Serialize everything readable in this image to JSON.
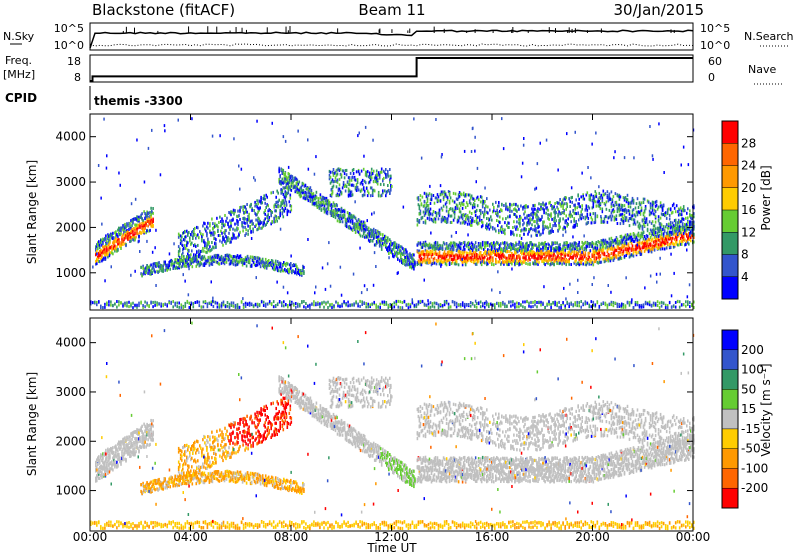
{
  "header": {
    "station": "Blackstone (fitACF)",
    "beam": "Beam 11",
    "date": "30/Jan/2015"
  },
  "sky_panel": {
    "left_label": "N.Sky",
    "right_label": "N.Search",
    "left_ticks": [
      "10^5",
      "10^0"
    ],
    "right_ticks": [
      "10^5",
      "10^0"
    ]
  },
  "freq_panel": {
    "left_label_1": "Freq.",
    "left_label_2": "[MHz]",
    "left_ticks": [
      "18",
      "8"
    ],
    "right_label": "Nave",
    "right_ticks": [
      "60",
      "0"
    ]
  },
  "cpid_panel": {
    "label": "CPID",
    "value": "themis -3300"
  },
  "power_panel": {
    "ylabel": "Slant Range [km]",
    "yticks": [
      "4000",
      "3000",
      "2000",
      "1000"
    ],
    "colorbar_label": "Power [dB]",
    "colorbar_ticks": [
      "28",
      "24",
      "20",
      "16",
      "12",
      "8",
      "4"
    ],
    "colorbar_colors": [
      "#ff0000",
      "#ff6600",
      "#ff9900",
      "#ffcc00",
      "#66cc33",
      "#339966",
      "#3355cc",
      "#0000ff"
    ]
  },
  "velocity_panel": {
    "ylabel": "Slant Range [km]",
    "yticks": [
      "4000",
      "3000",
      "2000",
      "1000"
    ],
    "colorbar_label": "Velocity [m s⁻¹]",
    "colorbar_ticks": [
      "200",
      "100",
      "50",
      "15",
      "-15",
      "-50",
      "-100",
      "-200"
    ],
    "colorbar_colors": [
      "#0000ff",
      "#3355cc",
      "#339966",
      "#66cc33",
      "#c0c0c0",
      "#ffcc00",
      "#ff9900",
      "#ff6600",
      "#ff0000"
    ]
  },
  "xaxis": {
    "label": "Time UT",
    "ticks": [
      "00:00",
      "04:00",
      "08:00",
      "12:00",
      "16:00",
      "20:00",
      "00:00"
    ]
  },
  "chart_data": [
    {
      "type": "line",
      "title": "N.Sky / N.Search",
      "x_range_hours": [
        0,
        24
      ],
      "y_scale": "log",
      "ylim": [
        1,
        100000
      ]
    },
    {
      "type": "line",
      "title": "Freq. / Nave",
      "x_range_hours": [
        0,
        24
      ],
      "series": [
        {
          "name": "Freq. [MHz]",
          "x": [
            0,
            0.1,
            0.1,
            13,
            13,
            24
          ],
          "values": [
            8,
            8,
            10,
            10,
            18,
            18
          ]
        }
      ],
      "ylim": [
        8,
        18
      ]
    },
    {
      "type": "heatmap",
      "title": "Power [dB]",
      "x_range_hours": [
        0,
        24
      ],
      "ylim_km": [
        180,
        4500
      ]
    },
    {
      "type": "heatmap",
      "title": "Velocity [m s-1]",
      "x_range_hours": [
        0,
        24
      ],
      "ylim_km": [
        180,
        4500
      ]
    }
  ]
}
